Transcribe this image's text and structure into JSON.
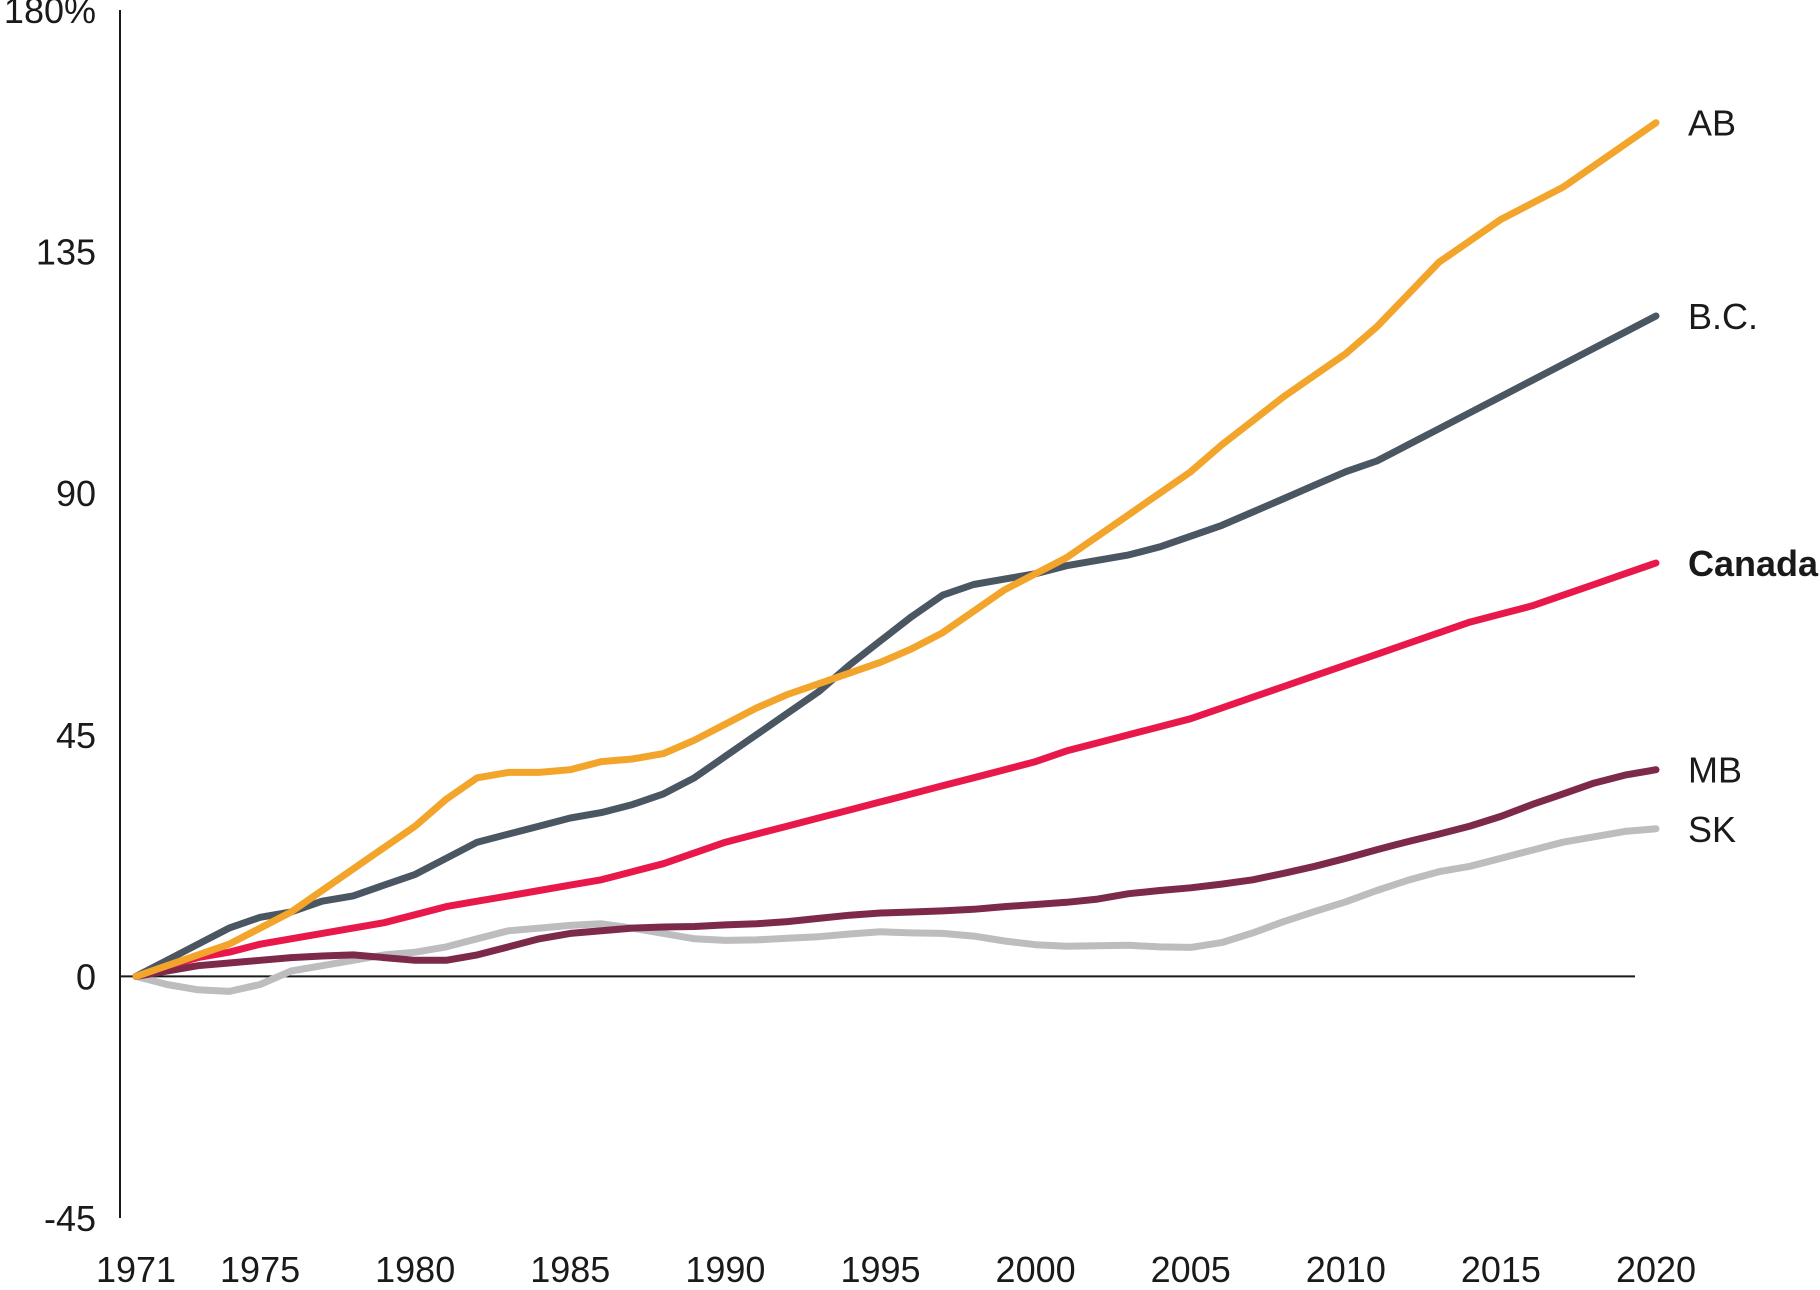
{
  "chart_data": {
    "type": "line",
    "title": "",
    "xlabel": "",
    "ylabel": "",
    "xlim": [
      1970,
      2020
    ],
    "ylim": [
      -45,
      180
    ],
    "y_ticks": [
      {
        "value": 180,
        "label": "180%"
      },
      {
        "value": 135,
        "label": "135"
      },
      {
        "value": 90,
        "label": "90"
      },
      {
        "value": 45,
        "label": "45"
      },
      {
        "value": 0,
        "label": "0"
      },
      {
        "value": -45,
        "label": "-45"
      }
    ],
    "x_ticks": [
      {
        "value": 1971,
        "label": "1971"
      },
      {
        "value": 1975,
        "label": "1975"
      },
      {
        "value": 1980,
        "label": "1980"
      },
      {
        "value": 1985,
        "label": "1985"
      },
      {
        "value": 1990,
        "label": "1990"
      },
      {
        "value": 1995,
        "label": "1995"
      },
      {
        "value": 2000,
        "label": "2000"
      },
      {
        "value": 2005,
        "label": "2005"
      },
      {
        "value": 2010,
        "label": "2010"
      },
      {
        "value": 2015,
        "label": "2015"
      },
      {
        "value": 2020,
        "label": "2020"
      }
    ],
    "grid": false,
    "legend": "direct labels at line ends",
    "x": [
      1971,
      1972,
      1973,
      1974,
      1975,
      1976,
      1977,
      1978,
      1979,
      1980,
      1981,
      1982,
      1983,
      1984,
      1985,
      1986,
      1987,
      1988,
      1989,
      1990,
      1991,
      1992,
      1993,
      1994,
      1995,
      1996,
      1997,
      1998,
      1999,
      2000,
      2001,
      2002,
      2003,
      2004,
      2005,
      2006,
      2007,
      2008,
      2009,
      2010,
      2011,
      2012,
      2013,
      2014,
      2015,
      2016,
      2017,
      2018,
      2019,
      2020
    ],
    "series": [
      {
        "name": "SK",
        "color": "#bdbdc0",
        "label_bold": false,
        "values": [
          0,
          -1.5,
          -2.5,
          -2.8,
          -1.5,
          1,
          2,
          3,
          4,
          4.5,
          5.5,
          7,
          8.5,
          9,
          9.5,
          9.8,
          9,
          8,
          7,
          6.7,
          6.8,
          7.1,
          7.4,
          7.9,
          8.3,
          8.1,
          8,
          7.5,
          6.6,
          5.9,
          5.6,
          5.7,
          5.8,
          5.5,
          5.4,
          6.3,
          8.1,
          10.2,
          12.1,
          13.9,
          16,
          17.9,
          19.5,
          20.5,
          22,
          23.5,
          25,
          26,
          27,
          27.5
        ]
      },
      {
        "name": "MB",
        "color": "#7d2a4a",
        "label_bold": false,
        "values": [
          0,
          1,
          2,
          2.5,
          3,
          3.5,
          3.8,
          4,
          3.5,
          3,
          3,
          4,
          5.5,
          7,
          8,
          8.5,
          9,
          9.2,
          9.3,
          9.6,
          9.8,
          10.2,
          10.8,
          11.4,
          11.8,
          12,
          12.2,
          12.5,
          13,
          13.4,
          13.8,
          14.4,
          15.4,
          16,
          16.5,
          17.2,
          18,
          19.2,
          20.5,
          22,
          23.6,
          25.1,
          26.5,
          28,
          29.8,
          32,
          34,
          36,
          37.5,
          38.5
        ]
      },
      {
        "name": "Canada",
        "color": "#e8194a",
        "label_bold": true,
        "values": [
          0,
          2,
          3.5,
          4.5,
          6,
          7,
          8,
          9,
          10,
          11.5,
          13,
          14,
          15,
          16,
          17,
          18,
          19.5,
          21,
          23,
          25,
          26.5,
          28,
          29.5,
          31,
          32.5,
          34,
          35.5,
          37,
          38.5,
          40,
          42,
          43.5,
          45,
          46.5,
          48,
          50,
          52,
          54,
          56,
          58,
          60,
          62,
          64,
          66,
          67.5,
          69,
          71,
          73,
          75,
          77
        ]
      },
      {
        "name": "B.C.",
        "color": "#4a5661",
        "label_bold": false,
        "values": [
          0,
          3,
          6,
          9,
          11,
          12,
          14,
          15,
          17,
          19,
          22,
          25,
          26.5,
          28,
          29.5,
          30.5,
          32,
          34,
          37,
          41,
          45,
          49,
          53,
          58,
          62.5,
          67,
          71,
          73,
          74,
          75,
          76.5,
          77.5,
          78.5,
          80,
          82,
          84,
          86.5,
          89,
          91.5,
          94,
          96,
          99,
          102,
          105,
          108,
          111,
          114,
          117,
          120,
          123
        ]
      },
      {
        "name": "AB",
        "color": "#f2a52a",
        "label_bold": false,
        "values": [
          0,
          2,
          4,
          6,
          9,
          12,
          16,
          20,
          24,
          28,
          33,
          37,
          38,
          38,
          38.5,
          40,
          40.5,
          41.5,
          44,
          47,
          50,
          52.5,
          54.5,
          56.5,
          58.5,
          61,
          64,
          68,
          72,
          75,
          78,
          82,
          86,
          90,
          94,
          99,
          103.5,
          108,
          112,
          116,
          121,
          127,
          133,
          137,
          141,
          144,
          147,
          151,
          155,
          159
        ]
      }
    ]
  }
}
